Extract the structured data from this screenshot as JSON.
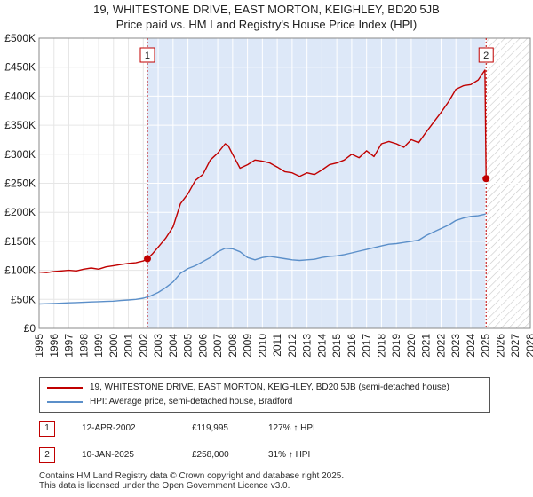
{
  "chart_data": {
    "type": "line",
    "title": "19, WHITESTONE DRIVE, EAST MORTON, KEIGHLEY, BD20 5JB",
    "subtitle": "Price paid vs. HM Land Registry's House Price Index (HPI)",
    "xlim": [
      1995,
      2028
    ],
    "ylim": [
      0,
      500000
    ],
    "x_ticks": [
      "1995",
      "1996",
      "1997",
      "1998",
      "1999",
      "2000",
      "2001",
      "2002",
      "2003",
      "2004",
      "2005",
      "2006",
      "2007",
      "2008",
      "2009",
      "2010",
      "2011",
      "2012",
      "2013",
      "2014",
      "2015",
      "2016",
      "2017",
      "2018",
      "2019",
      "2020",
      "2021",
      "2022",
      "2023",
      "2024",
      "2025",
      "2026",
      "2027",
      "2028"
    ],
    "y_ticks": [
      {
        "value": 0,
        "label": "£0"
      },
      {
        "value": 50000,
        "label": "£50K"
      },
      {
        "value": 100000,
        "label": "£100K"
      },
      {
        "value": 150000,
        "label": "£150K"
      },
      {
        "value": 200000,
        "label": "£200K"
      },
      {
        "value": 250000,
        "label": "£250K"
      },
      {
        "value": 300000,
        "label": "£300K"
      },
      {
        "value": 350000,
        "label": "£350K"
      },
      {
        "value": 400000,
        "label": "£400K"
      },
      {
        "value": 450000,
        "label": "£450K"
      },
      {
        "value": 500000,
        "label": "£500K"
      }
    ],
    "grid": true,
    "shaded_region": {
      "from": 2002.28,
      "to": 2025.03,
      "color": "#dde8f8"
    },
    "future_hatch_from": 2025.03,
    "series": [
      {
        "name": "19, WHITESTONE DRIVE, EAST MORTON, KEIGHLEY, BD20 5JB (semi-detached house)",
        "color": "#c00000",
        "x": [
          1995.0,
          1995.5,
          1996.0,
          1996.5,
          1997.0,
          1997.5,
          1998.0,
          1998.5,
          1999.0,
          1999.5,
          2000.0,
          2000.5,
          2001.0,
          2001.5,
          2002.0,
          2002.28,
          2002.6,
          2003.0,
          2003.5,
          2004.0,
          2004.5,
          2005.0,
          2005.5,
          2006.0,
          2006.5,
          2007.0,
          2007.5,
          2007.7,
          2008.0,
          2008.5,
          2009.0,
          2009.5,
          2010.0,
          2010.5,
          2011.0,
          2011.5,
          2012.0,
          2012.5,
          2013.0,
          2013.5,
          2014.0,
          2014.5,
          2015.0,
          2015.5,
          2016.0,
          2016.5,
          2017.0,
          2017.5,
          2018.0,
          2018.5,
          2019.0,
          2019.5,
          2020.0,
          2020.5,
          2021.0,
          2021.5,
          2022.0,
          2022.5,
          2023.0,
          2023.5,
          2024.0,
          2024.5,
          2024.95,
          2025.03
        ],
        "values": [
          97000,
          96000,
          98000,
          99000,
          100000,
          99000,
          102000,
          104000,
          102000,
          106000,
          108000,
          110000,
          112000,
          113000,
          116000,
          119995,
          128000,
          140000,
          155000,
          175000,
          215000,
          232000,
          255000,
          265000,
          290000,
          302000,
          318000,
          315000,
          300000,
          276000,
          282000,
          290000,
          288000,
          285000,
          278000,
          270000,
          268000,
          262000,
          268000,
          265000,
          273000,
          282000,
          285000,
          290000,
          300000,
          294000,
          306000,
          296000,
          318000,
          322000,
          318000,
          312000,
          325000,
          320000,
          338000,
          355000,
          372000,
          390000,
          412000,
          418000,
          420000,
          428000,
          445000,
          258000
        ]
      },
      {
        "name": "HPI: Average price, semi-detached house, Bradford",
        "color": "#5b8fc9",
        "x": [
          1995.0,
          1995.5,
          1996.0,
          1996.5,
          1997.0,
          1997.5,
          1998.0,
          1998.5,
          1999.0,
          1999.5,
          2000.0,
          2000.5,
          2001.0,
          2001.5,
          2002.0,
          2002.5,
          2003.0,
          2003.5,
          2004.0,
          2004.5,
          2005.0,
          2005.5,
          2006.0,
          2006.5,
          2007.0,
          2007.5,
          2008.0,
          2008.5,
          2009.0,
          2009.5,
          2010.0,
          2010.5,
          2011.0,
          2011.5,
          2012.0,
          2012.5,
          2013.0,
          2013.5,
          2014.0,
          2014.5,
          2015.0,
          2015.5,
          2016.0,
          2016.5,
          2017.0,
          2017.5,
          2018.0,
          2018.5,
          2019.0,
          2019.5,
          2020.0,
          2020.5,
          2021.0,
          2021.5,
          2022.0,
          2022.5,
          2023.0,
          2023.5,
          2024.0,
          2024.5,
          2025.0
        ],
        "values": [
          42000,
          42500,
          43000,
          43500,
          44000,
          44500,
          45000,
          45500,
          46000,
          46500,
          47000,
          48000,
          49000,
          50000,
          52000,
          56000,
          62000,
          70000,
          80000,
          95000,
          103000,
          108000,
          115000,
          122000,
          132000,
          138000,
          137000,
          132000,
          122000,
          118000,
          122000,
          124000,
          122000,
          120000,
          118000,
          117000,
          118000,
          119000,
          122000,
          124000,
          125000,
          127000,
          130000,
          133000,
          136000,
          139000,
          142000,
          145000,
          146000,
          148000,
          150000,
          152000,
          160000,
          166000,
          172000,
          178000,
          186000,
          190000,
          193000,
          194000,
          197000
        ]
      }
    ],
    "markers": [
      {
        "label": "1",
        "x": 2002.28,
        "value": 119995
      },
      {
        "label": "2",
        "x": 2025.03,
        "value": 258000
      }
    ]
  },
  "legend": {
    "property_label": "19, WHITESTONE DRIVE, EAST MORTON, KEIGHLEY, BD20 5JB (semi-detached house)",
    "hpi_label": "HPI: Average price, semi-detached house, Bradford"
  },
  "transactions": [
    {
      "id": "1",
      "date": "12-APR-2002",
      "price": "£119,995",
      "hpi": "127% ↑ HPI"
    },
    {
      "id": "2",
      "date": "10-JAN-2025",
      "price": "£258,000",
      "hpi": "31% ↑ HPI"
    }
  ],
  "footer": {
    "line1": "Contains HM Land Registry data © Crown copyright and database right 2025.",
    "line2": "This data is licensed under the Open Government Licence v3.0."
  }
}
